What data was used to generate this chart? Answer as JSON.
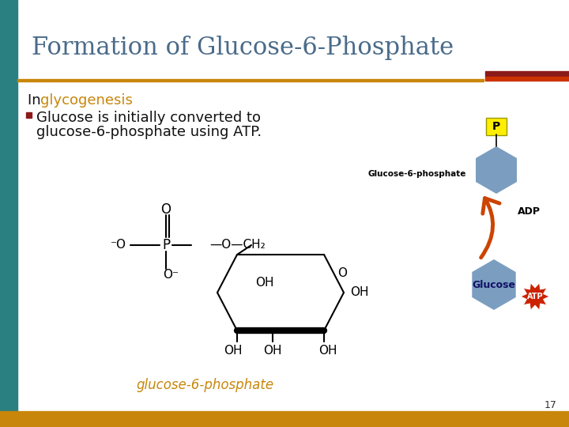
{
  "title": "Formation of Glucose-6-Phosphate",
  "title_color": "#4a6b8a",
  "title_fontsize": 22,
  "bg_color": "#ffffff",
  "left_bar_color": "#2a8080",
  "bottom_bar_color": "#c8860a",
  "accent_line_dark_red": "#8b1a1a",
  "accent_line_red": "#cc3300",
  "text_in": "In ",
  "text_glycogenesis": "glycogenesis",
  "glycogenesis_color": "#c8860a",
  "bullet_color": "#8b1a1a",
  "bullet_text_line1": "Glucose is initially converted to",
  "bullet_text_line2": "glucose-6-phosphate using ATP.",
  "bullet_text_color": "#111111",
  "bullet_text_fontsize": 13,
  "caption_color": "#c8860a",
  "caption_text": "glucose-6-phosphate",
  "page_number": "17",
  "hex_color": "#7b9ec0",
  "p_box_color": "#ffee00",
  "atp_color": "#cc2200",
  "adp_color": "#111111"
}
